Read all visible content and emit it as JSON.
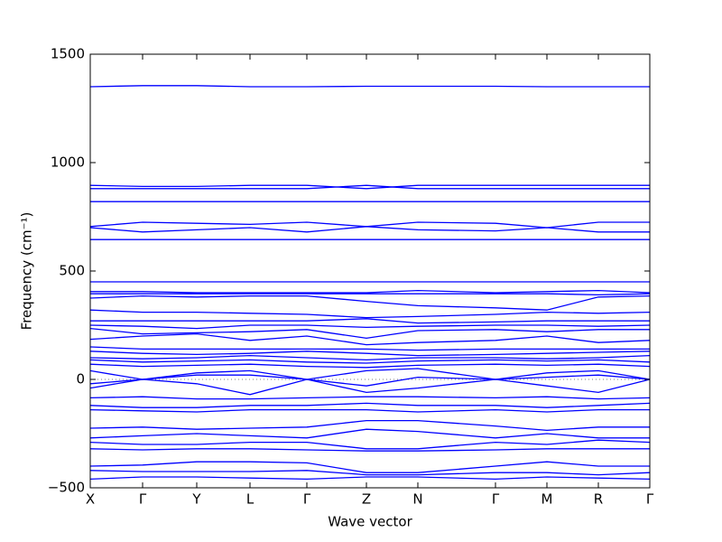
{
  "chart_data": {
    "type": "line",
    "xlabel": "Wave vector",
    "ylabel": "Frequency (cm⁻¹)",
    "color": "#0000ff",
    "x": [
      0,
      0.58,
      1.18,
      1.77,
      2.4,
      3.06,
      3.63,
      4.49,
      5.06,
      5.63,
      6.2
    ],
    "xlim": [
      0,
      6.2
    ],
    "xticks": [
      {
        "value": 0,
        "label": "X"
      },
      {
        "value": 0.58,
        "label": "Γ"
      },
      {
        "value": 1.18,
        "label": "Y"
      },
      {
        "value": 1.77,
        "label": "L"
      },
      {
        "value": 2.4,
        "label": "Γ"
      },
      {
        "value": 3.06,
        "label": "Z"
      },
      {
        "value": 3.63,
        "label": "N"
      },
      {
        "value": 4.49,
        "label": "Γ"
      },
      {
        "value": 5.06,
        "label": "M"
      },
      {
        "value": 5.63,
        "label": "R"
      },
      {
        "value": 6.2,
        "label": "Γ"
      }
    ],
    "ylim": [
      -500,
      1500
    ],
    "yticks": [
      {
        "value": -500,
        "label": "−500"
      },
      0,
      500,
      1000,
      1500
    ],
    "bands": [
      [
        1350,
        1355,
        1355,
        1350,
        1350,
        1352,
        1352,
        1352,
        1350,
        1350,
        1350
      ],
      [
        895,
        890,
        890,
        895,
        895,
        880,
        895,
        895,
        895,
        895,
        895
      ],
      [
        880,
        880,
        880,
        880,
        880,
        895,
        880,
        880,
        880,
        880,
        880
      ],
      [
        820,
        820,
        820,
        820,
        820,
        820,
        820,
        820,
        820,
        820,
        820
      ],
      [
        705,
        725,
        720,
        715,
        725,
        705,
        725,
        720,
        700,
        725,
        725
      ],
      [
        700,
        680,
        690,
        700,
        680,
        705,
        690,
        685,
        700,
        680,
        680
      ],
      [
        645,
        645,
        645,
        645,
        645,
        645,
        645,
        645,
        645,
        645,
        645
      ],
      [
        450,
        450,
        450,
        450,
        450,
        450,
        450,
        450,
        450,
        450,
        450
      ],
      [
        405,
        405,
        400,
        400,
        400,
        400,
        410,
        400,
        405,
        410,
        400
      ],
      [
        395,
        395,
        395,
        395,
        395,
        395,
        395,
        395,
        395,
        390,
        395
      ],
      [
        375,
        385,
        380,
        385,
        385,
        360,
        340,
        330,
        320,
        380,
        385
      ],
      [
        320,
        310,
        310,
        305,
        300,
        285,
        290,
        300,
        310,
        305,
        310
      ],
      [
        270,
        270,
        270,
        270,
        270,
        280,
        260,
        265,
        270,
        270,
        270
      ],
      [
        250,
        245,
        235,
        250,
        250,
        240,
        245,
        250,
        250,
        245,
        250
      ],
      [
        235,
        210,
        215,
        220,
        230,
        190,
        225,
        230,
        220,
        230,
        230
      ],
      [
        185,
        200,
        210,
        180,
        200,
        160,
        170,
        180,
        200,
        170,
        180
      ],
      [
        150,
        140,
        140,
        140,
        140,
        140,
        135,
        140,
        140,
        140,
        140
      ],
      [
        130,
        120,
        115,
        120,
        130,
        120,
        110,
        115,
        120,
        125,
        130
      ],
      [
        100,
        95,
        100,
        110,
        100,
        90,
        100,
        100,
        95,
        100,
        110
      ],
      [
        90,
        80,
        85,
        90,
        80,
        75,
        85,
        90,
        85,
        90,
        80
      ],
      [
        70,
        60,
        65,
        70,
        60,
        55,
        65,
        70,
        65,
        70,
        60
      ],
      [
        40,
        0,
        30,
        40,
        0,
        40,
        50,
        0,
        30,
        40,
        0
      ],
      [
        -20,
        0,
        20,
        20,
        0,
        -30,
        10,
        0,
        10,
        20,
        0
      ],
      [
        -40,
        0,
        -20,
        -70,
        0,
        -60,
        -40,
        0,
        -30,
        -60,
        0
      ],
      [
        -85,
        -80,
        -90,
        -90,
        -85,
        -80,
        -80,
        -85,
        -80,
        -90,
        -85
      ],
      [
        -120,
        -130,
        -130,
        -120,
        -120,
        -110,
        -120,
        -120,
        -130,
        -120,
        -110
      ],
      [
        -140,
        -145,
        -150,
        -140,
        -140,
        -140,
        -150,
        -140,
        -150,
        -140,
        -140
      ],
      [
        -225,
        -220,
        -230,
        -225,
        -220,
        -190,
        -190,
        -215,
        -235,
        -220,
        -220
      ],
      [
        -270,
        -260,
        -250,
        -260,
        -270,
        -230,
        -240,
        -270,
        -250,
        -270,
        -270
      ],
      [
        -290,
        -300,
        -300,
        -290,
        -290,
        -320,
        -320,
        -290,
        -300,
        -280,
        -290
      ],
      [
        -320,
        -325,
        -320,
        -320,
        -325,
        -330,
        -330,
        -325,
        -320,
        -320,
        -320
      ],
      [
        -400,
        -395,
        -380,
        -380,
        -385,
        -430,
        -430,
        -400,
        -380,
        -400,
        -400
      ],
      [
        -420,
        -425,
        -425,
        -425,
        -420,
        -440,
        -440,
        -430,
        -430,
        -440,
        -430
      ],
      [
        -460,
        -450,
        -450,
        -455,
        -460,
        -450,
        -450,
        -460,
        -450,
        -455,
        -460
      ]
    ]
  }
}
